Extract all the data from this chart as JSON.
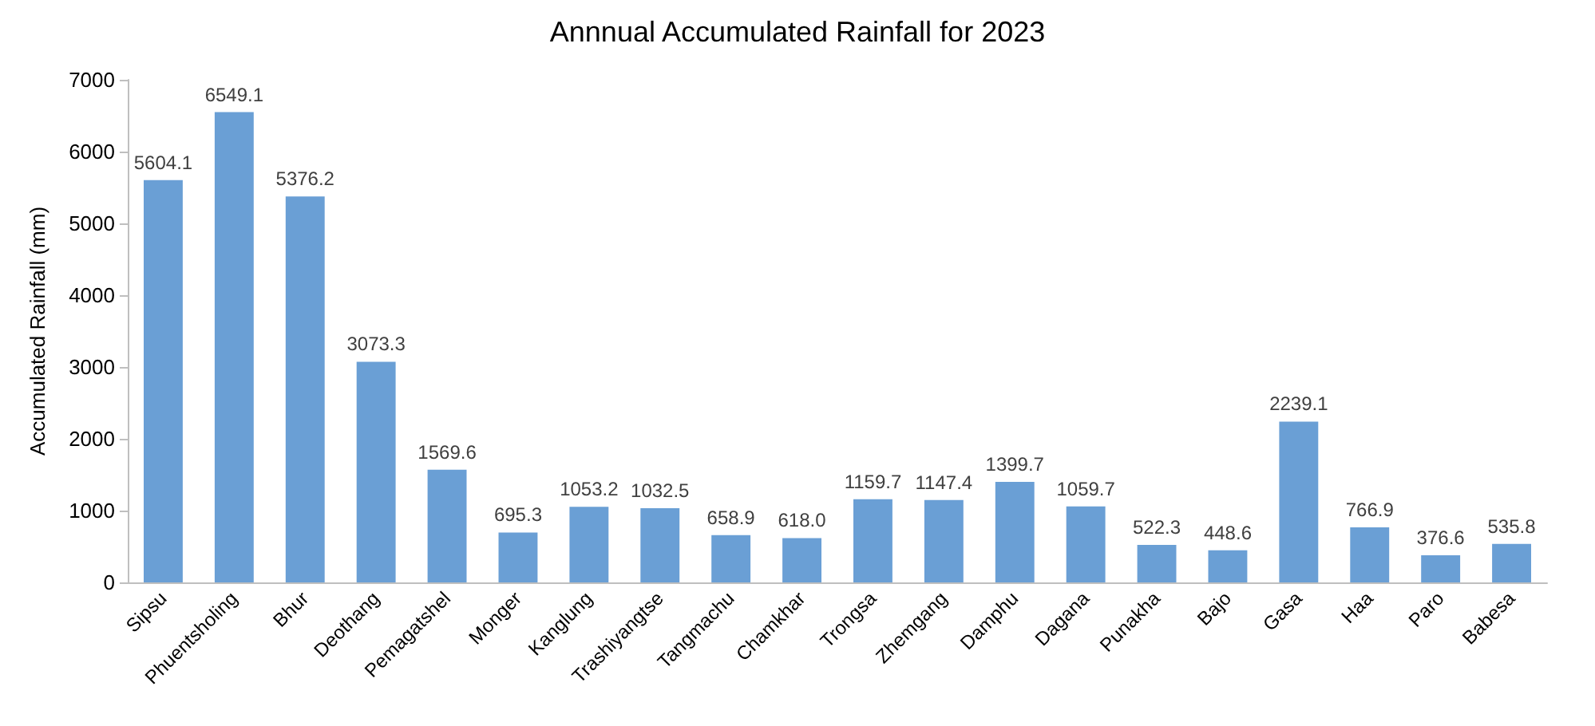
{
  "chart_data": {
    "type": "bar",
    "title": "Annnual Accumulated Rainfall for 2023",
    "ylabel": "Accumulated Rainfall (mm)",
    "categories": [
      "Sipsu",
      "Phuentsholing",
      "Bhur",
      "Deothang",
      "Pemagatshel",
      "Monger",
      "Kanglung",
      "Trashiyangtse",
      "Tangmachu",
      "Chamkhar",
      "Trongsa",
      "Zhemgang",
      "Damphu",
      "Dagana",
      "Punakha",
      "Bajo",
      "Gasa",
      "Haa",
      "Paro",
      "Babesa"
    ],
    "values": [
      5604.1,
      6549.1,
      5376.2,
      3073.3,
      1569.6,
      695.3,
      1053.2,
      1032.5,
      658.9,
      618.0,
      1159.7,
      1147.4,
      1399.7,
      1059.7,
      522.3,
      448.6,
      2239.1,
      766.9,
      376.6,
      535.8
    ],
    "value_labels": [
      "5604.1",
      "6549.1",
      "5376.2",
      "3073.3",
      "1569.6",
      "695.3",
      "1053.2",
      "1032.5",
      "658.9",
      "618.0",
      "1159.7",
      "1147.4",
      "1399.7",
      "1059.7",
      "522.3",
      "448.6",
      "2239.1",
      "766.9",
      "376.6",
      "535.8"
    ],
    "color": "#6a9fd5",
    "ylim": [
      0,
      7000
    ],
    "yticks": [
      0,
      1000,
      2000,
      3000,
      4000,
      5000,
      6000,
      7000
    ],
    "grid": false
  }
}
